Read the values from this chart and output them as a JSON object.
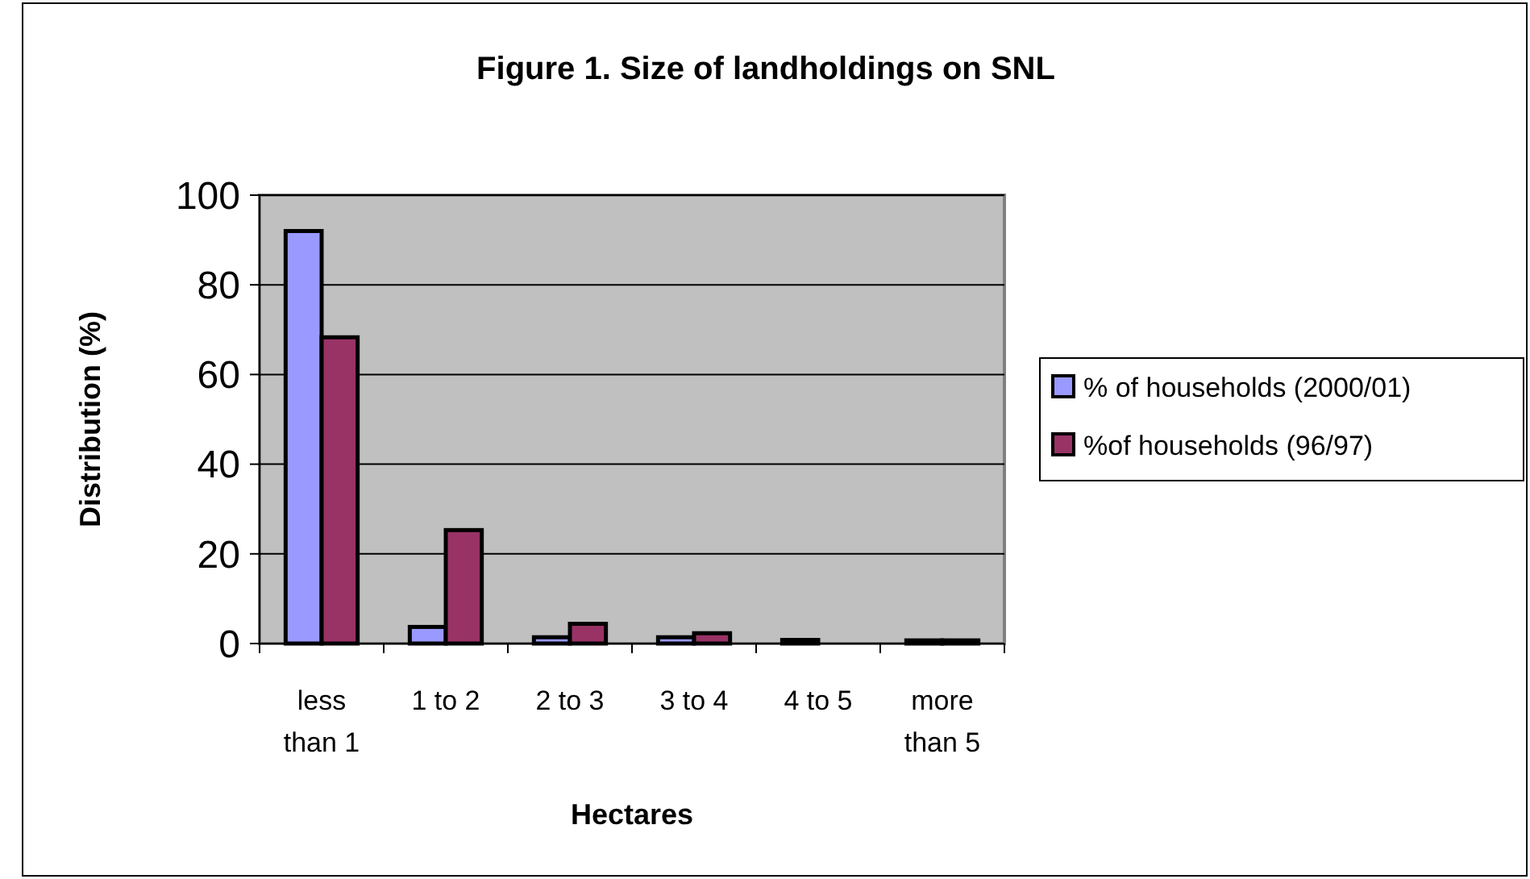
{
  "chart_data": {
    "type": "bar",
    "title": "Figure 1. Size of landholdings on SNL",
    "xlabel": "Hectares",
    "ylabel": "Distribution (%)",
    "categories": [
      "less than 1",
      "1 to 2",
      "2 to 3",
      "3 to 4",
      "4 to 5",
      "more than 5"
    ],
    "series": [
      {
        "name": "% of households (2000/01)",
        "color": "#9999ff",
        "values": [
          92,
          3.7,
          1.4,
          1.4,
          0.8,
          0.7
        ]
      },
      {
        "name": "%of households (96/97)",
        "color": "#993366",
        "values": [
          68.3,
          25.3,
          4.4,
          2.3,
          0,
          0.7
        ]
      }
    ],
    "ylim": [
      0,
      100
    ],
    "yticks": [
      0,
      20,
      40,
      60,
      80,
      100
    ],
    "grid": "y",
    "legend": "right"
  }
}
